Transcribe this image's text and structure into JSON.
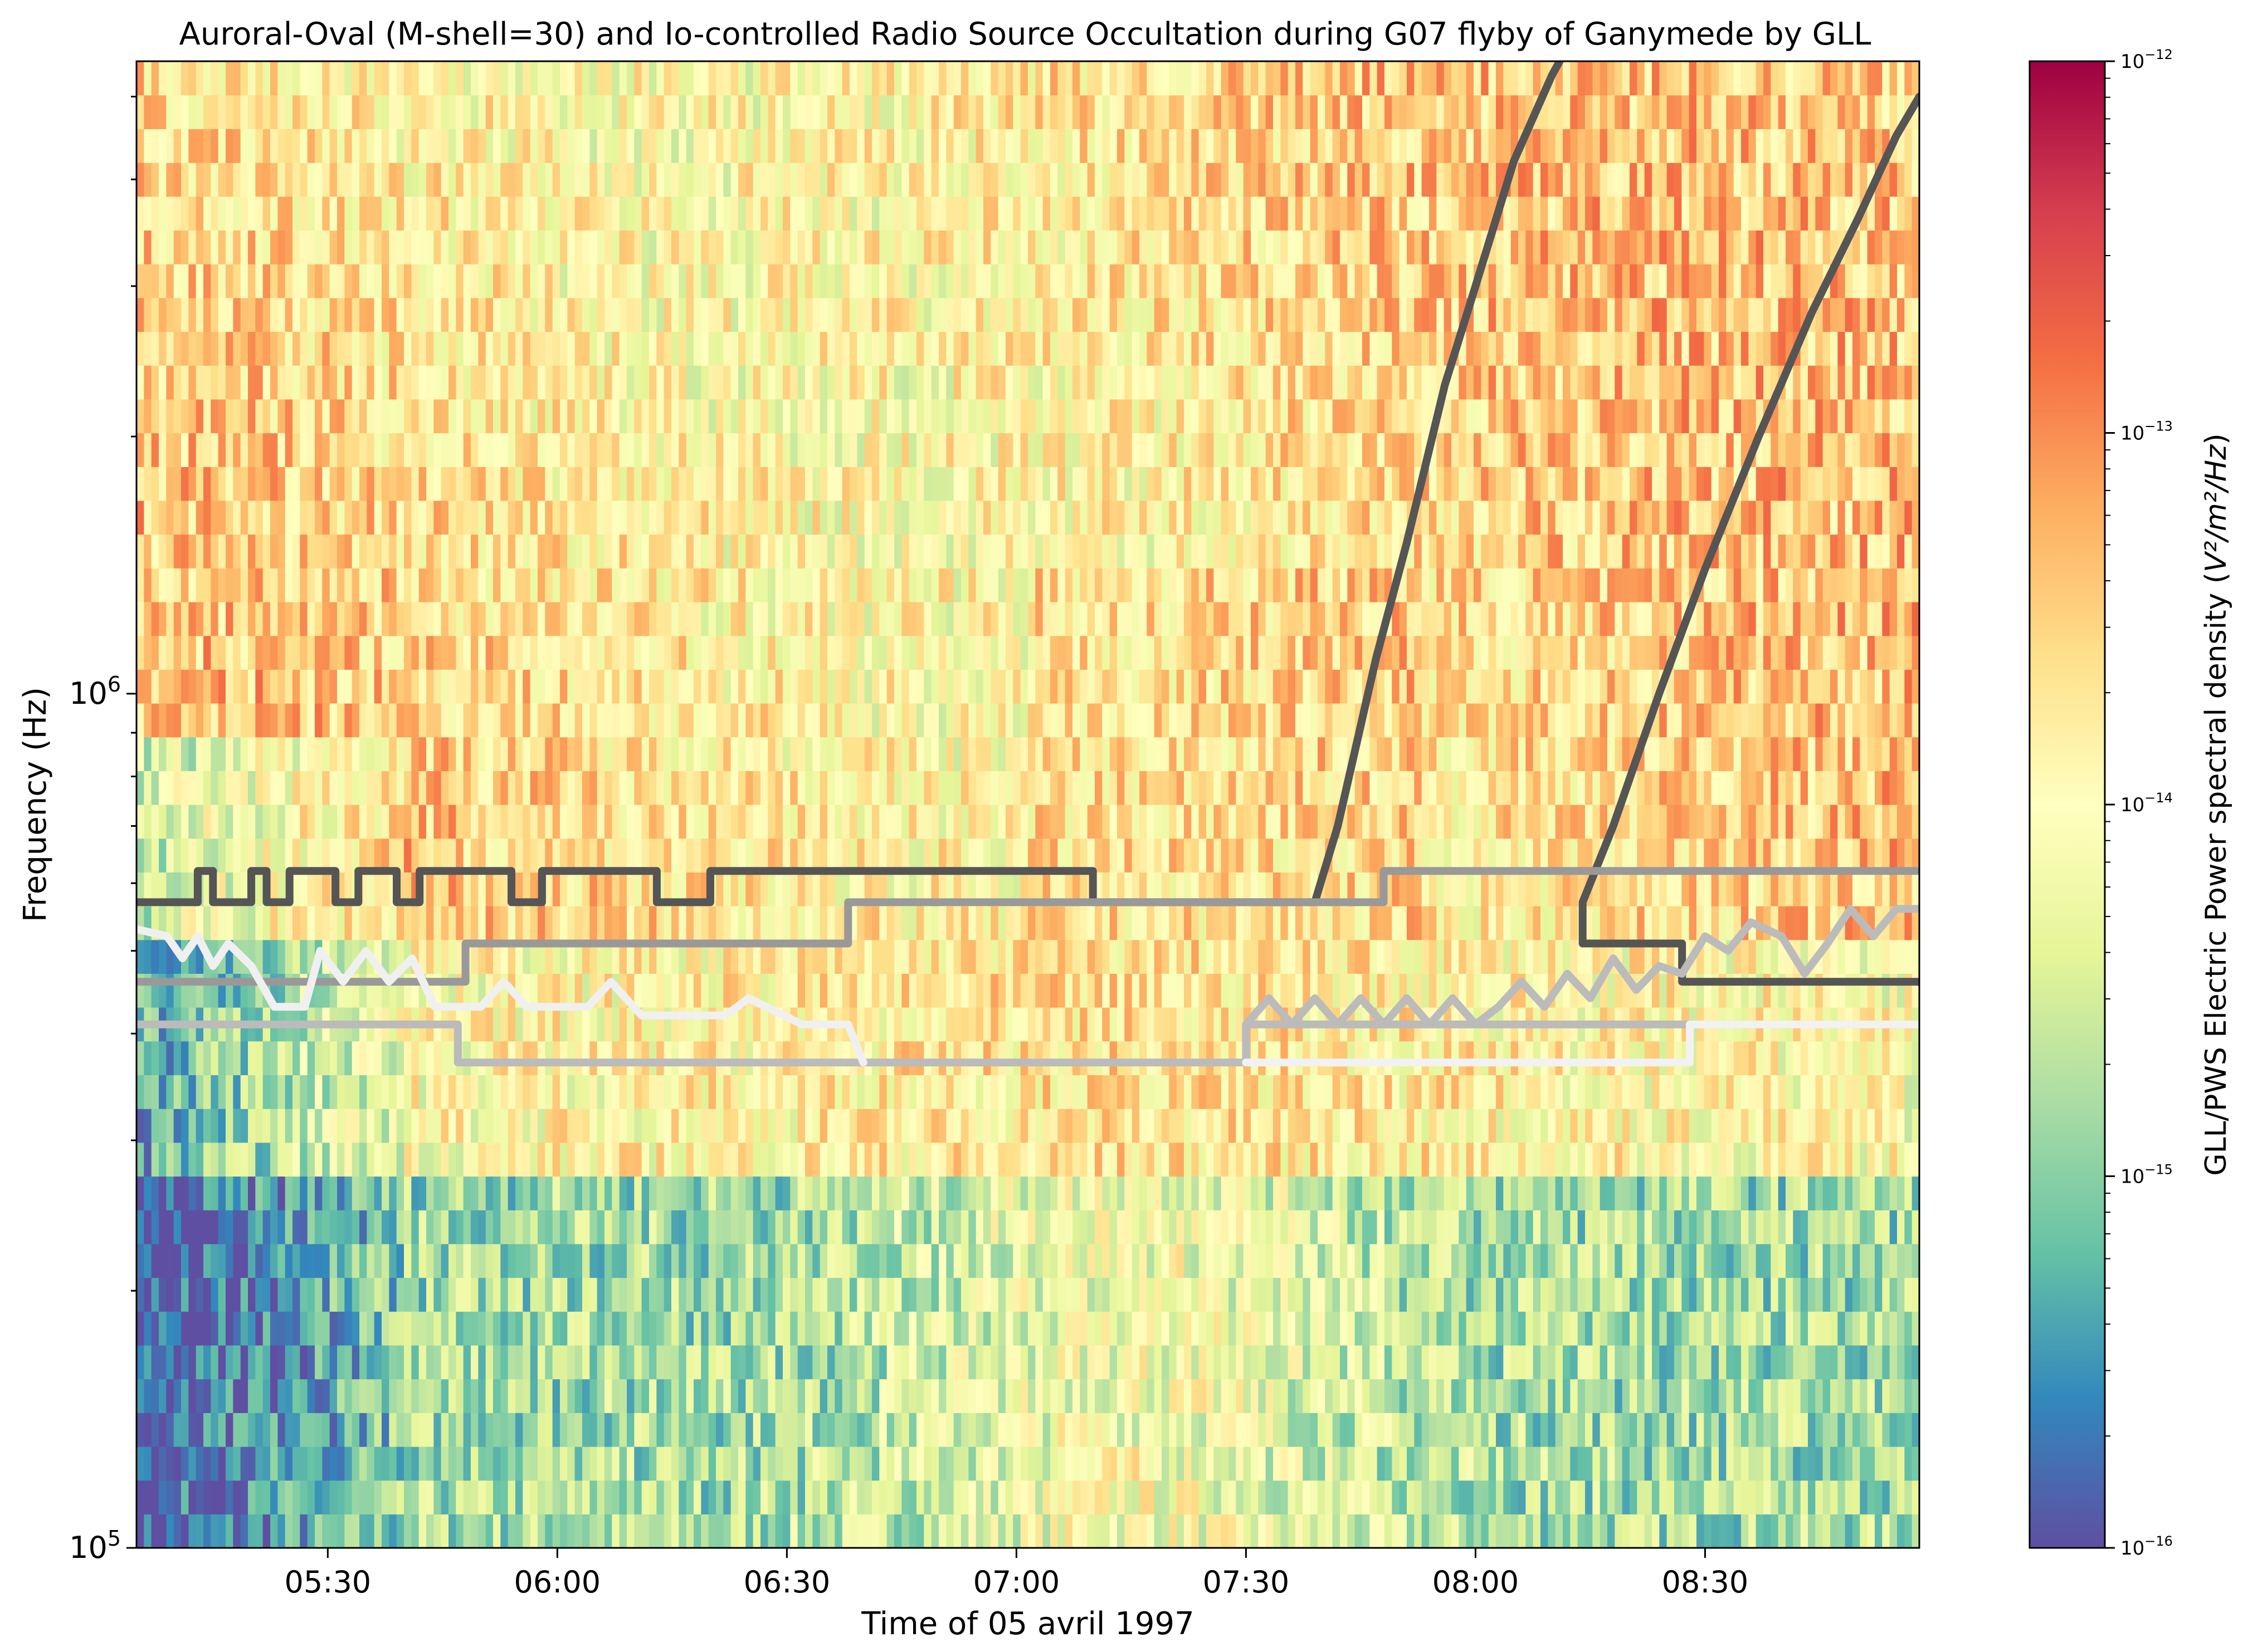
{
  "chart_data": {
    "type": "heatmap",
    "title": "Auroral-Oval (M-shell=30) and Io-controlled Radio Source Occultation during G07 flyby of Ganymede by GLL",
    "xlabel": "Time of 05 avril 1997",
    "ylabel": "Frequency (Hz)",
    "x_range": [
      "05:05",
      "08:58"
    ],
    "y_range": [
      100000,
      5500000
    ],
    "y_scale": "log",
    "x_ticks": [
      "05:30",
      "06:00",
      "06:30",
      "07:00",
      "07:30",
      "08:00",
      "08:30"
    ],
    "y_ticks": [
      {
        "base": "10",
        "exp": "5",
        "value": 100000
      },
      {
        "base": "10",
        "exp": "6",
        "value": 1000000
      }
    ],
    "colorbar": {
      "label_main": "GLL/PWS Electric Power spectral density (",
      "label_unit": "V²/m²/Hz",
      "label_close": ")",
      "scale": "log",
      "range": [
        1e-16,
        1e-12
      ],
      "ticks": [
        {
          "base": "10",
          "exp": "−12",
          "value": 1e-12
        },
        {
          "base": "10",
          "exp": "−13",
          "value": 1e-13
        },
        {
          "base": "10",
          "exp": "−14",
          "value": 1e-14
        },
        {
          "base": "10",
          "exp": "−15",
          "value": 1e-15
        },
        {
          "base": "10",
          "exp": "−16",
          "value": 1e-16
        }
      ],
      "colormap": "Spectral_r"
    },
    "series": [
      {
        "color": "#555555",
        "points": [
          [
            "05:05",
            570000
          ],
          [
            "05:13",
            570000
          ],
          [
            "05:13",
            620000
          ],
          [
            "05:15",
            620000
          ],
          [
            "05:15",
            570000
          ],
          [
            "05:20",
            570000
          ],
          [
            "05:20",
            620000
          ],
          [
            "05:22",
            620000
          ],
          [
            "05:22",
            570000
          ],
          [
            "05:25",
            570000
          ],
          [
            "05:25",
            620000
          ],
          [
            "05:31",
            620000
          ],
          [
            "05:31",
            570000
          ],
          [
            "05:34",
            570000
          ],
          [
            "05:34",
            620000
          ],
          [
            "05:39",
            620000
          ],
          [
            "05:39",
            570000
          ],
          [
            "05:42",
            570000
          ],
          [
            "05:42",
            620000
          ],
          [
            "05:54",
            620000
          ],
          [
            "05:54",
            570000
          ],
          [
            "05:58",
            570000
          ],
          [
            "05:58",
            620000
          ],
          [
            "06:13",
            620000
          ],
          [
            "06:13",
            570000
          ],
          [
            "06:20",
            570000
          ],
          [
            "06:20",
            620000
          ],
          [
            "07:10",
            620000
          ],
          [
            "07:10",
            570000
          ],
          [
            "07:39",
            570000
          ],
          [
            "07:42",
            700000
          ],
          [
            "07:47",
            1100000
          ],
          [
            "07:51",
            1500000
          ],
          [
            "07:56",
            2300000
          ],
          [
            "08:00",
            3000000
          ],
          [
            "08:05",
            4200000
          ],
          [
            "08:10",
            5300000
          ],
          [
            "08:11",
            5500000
          ]
        ]
      },
      {
        "color": "#555555",
        "points": [
          [
            "08:14",
            510000
          ],
          [
            "08:14",
            570000
          ],
          [
            "08:18",
            700000
          ],
          [
            "08:24",
            1000000
          ],
          [
            "08:30",
            1400000
          ],
          [
            "08:37",
            2000000
          ],
          [
            "08:44",
            2800000
          ],
          [
            "08:50",
            3600000
          ],
          [
            "08:55",
            4500000
          ],
          [
            "08:58",
            5000000
          ]
        ]
      },
      {
        "color": "#555555",
        "points": [
          [
            "08:14",
            510000
          ],
          [
            "08:27",
            510000
          ],
          [
            "08:27",
            460000
          ],
          [
            "08:58",
            460000
          ]
        ]
      },
      {
        "color": "#999999",
        "points": [
          [
            "05:05",
            460000
          ],
          [
            "05:48",
            460000
          ],
          [
            "05:48",
            510000
          ],
          [
            "06:38",
            510000
          ],
          [
            "06:38",
            570000
          ],
          [
            "07:48",
            570000
          ],
          [
            "07:48",
            620000
          ],
          [
            "08:58",
            620000
          ]
        ]
      },
      {
        "color": "#bbbbbb",
        "points": [
          [
            "05:05",
            410000
          ],
          [
            "05:47",
            410000
          ],
          [
            "05:47",
            370000
          ],
          [
            "06:40",
            370000
          ],
          [
            "06:40",
            370000
          ],
          [
            "07:30",
            370000
          ],
          [
            "07:30",
            410000
          ],
          [
            "08:58",
            410000
          ]
        ]
      },
      {
        "color": "#f2f2f2",
        "points": [
          [
            "07:30",
            370000
          ],
          [
            "08:28",
            370000
          ],
          [
            "08:28",
            410000
          ],
          [
            "08:58",
            410000
          ]
        ]
      },
      {
        "color": "#f0f0f0",
        "points": [
          [
            "05:05",
            530000
          ],
          [
            "05:09",
            520000
          ],
          [
            "05:11",
            490000
          ],
          [
            "05:13",
            520000
          ],
          [
            "05:15",
            480000
          ],
          [
            "05:17",
            510000
          ],
          [
            "05:20",
            480000
          ],
          [
            "05:23",
            430000
          ],
          [
            "05:27",
            430000
          ],
          [
            "05:29",
            500000
          ],
          [
            "05:32",
            460000
          ],
          [
            "05:35",
            500000
          ],
          [
            "05:38",
            460000
          ],
          [
            "05:41",
            490000
          ],
          [
            "05:44",
            430000
          ],
          [
            "05:50",
            430000
          ],
          [
            "05:53",
            460000
          ],
          [
            "05:56",
            430000
          ],
          [
            "06:04",
            430000
          ],
          [
            "06:07",
            460000
          ],
          [
            "06:11",
            420000
          ],
          [
            "06:22",
            420000
          ],
          [
            "06:25",
            440000
          ],
          [
            "06:32",
            410000
          ],
          [
            "06:38",
            410000
          ],
          [
            "06:40",
            370000
          ]
        ]
      },
      {
        "color": "#bbbbbb",
        "points": [
          [
            "07:30",
            410000
          ],
          [
            "07:33",
            440000
          ],
          [
            "07:36",
            410000
          ],
          [
            "07:39",
            440000
          ],
          [
            "07:42",
            410000
          ],
          [
            "07:45",
            440000
          ],
          [
            "07:48",
            410000
          ],
          [
            "07:51",
            440000
          ],
          [
            "07:54",
            410000
          ],
          [
            "07:57",
            440000
          ],
          [
            "08:00",
            410000
          ],
          [
            "08:03",
            430000
          ],
          [
            "08:06",
            460000
          ],
          [
            "08:09",
            430000
          ],
          [
            "08:12",
            470000
          ],
          [
            "08:15",
            440000
          ],
          [
            "08:18",
            490000
          ],
          [
            "08:21",
            450000
          ],
          [
            "08:24",
            480000
          ],
          [
            "08:27",
            470000
          ],
          [
            "08:30",
            520000
          ],
          [
            "08:33",
            500000
          ],
          [
            "08:36",
            540000
          ],
          [
            "08:40",
            520000
          ],
          [
            "08:43",
            470000
          ],
          [
            "08:46",
            510000
          ],
          [
            "08:49",
            560000
          ],
          [
            "08:52",
            520000
          ],
          [
            "08:55",
            560000
          ],
          [
            "08:58",
            560000
          ]
        ]
      }
    ]
  }
}
